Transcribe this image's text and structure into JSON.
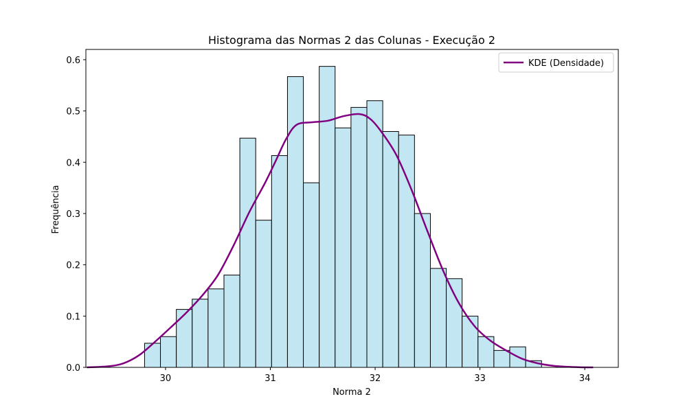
{
  "chart_data": {
    "type": "bar",
    "title": "Histograma das Normas 2 das Colunas - Execução 2",
    "xlabel": "Norma 2",
    "ylabel": "Frequência",
    "xlim": [
      29.24,
      34.32
    ],
    "ylim": [
      0,
      0.62
    ],
    "xticks": [
      30,
      31,
      32,
      33,
      34
    ],
    "yticks": [
      0.0,
      0.1,
      0.2,
      0.3,
      0.4,
      0.5,
      0.6
    ],
    "grid": false,
    "legend": {
      "placement": "top-right",
      "entries": [
        "KDE (Densidade)"
      ]
    },
    "histogram": {
      "bin_start": 29.8,
      "bin_width": 0.1515,
      "values": [
        0.047,
        0.06,
        0.113,
        0.133,
        0.153,
        0.18,
        0.447,
        0.287,
        0.413,
        0.567,
        0.36,
        0.587,
        0.467,
        0.507,
        0.52,
        0.46,
        0.453,
        0.3,
        0.193,
        0.173,
        0.1,
        0.06,
        0.033,
        0.04,
        0.013
      ],
      "fill": "#c3e6f3",
      "edge": "#000000"
    },
    "series": [
      {
        "name": "KDE (Densidade)",
        "type": "line",
        "color": "#800080",
        "x": [
          29.25,
          29.45,
          29.6,
          29.75,
          29.9,
          30.05,
          30.2,
          30.35,
          30.5,
          30.65,
          30.8,
          30.95,
          31.05,
          31.15,
          31.25,
          31.4,
          31.55,
          31.7,
          31.85,
          31.95,
          32.05,
          32.2,
          32.35,
          32.5,
          32.65,
          32.8,
          32.95,
          33.1,
          33.25,
          33.4,
          33.55,
          33.7,
          33.85,
          34.0,
          34.08
        ],
        "y": [
          0.0,
          0.002,
          0.008,
          0.024,
          0.05,
          0.078,
          0.107,
          0.14,
          0.18,
          0.238,
          0.303,
          0.36,
          0.402,
          0.445,
          0.473,
          0.478,
          0.481,
          0.49,
          0.494,
          0.485,
          0.462,
          0.415,
          0.345,
          0.265,
          0.188,
          0.125,
          0.08,
          0.052,
          0.033,
          0.017,
          0.008,
          0.003,
          0.001,
          0.0,
          0.0
        ]
      }
    ]
  }
}
